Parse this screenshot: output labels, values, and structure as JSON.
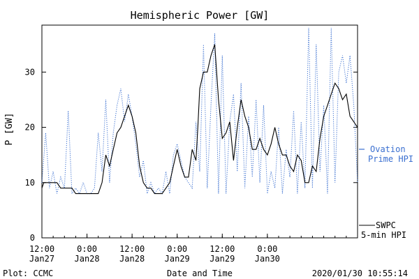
{
  "chart_data": {
    "type": "line",
    "title": "Hemispheric Power [GW]",
    "xlabel": "Date and Time",
    "ylabel": "P [GW]",
    "ylim": [
      0,
      38.5
    ],
    "xlim": [
      0,
      84
    ],
    "y_ticks": [
      0,
      10,
      20,
      30
    ],
    "x_ticks": [
      {
        "x": 0,
        "label1": "12:00",
        "label2": "Jan27"
      },
      {
        "x": 12,
        "label1": "0:00",
        "label2": "Jan28"
      },
      {
        "x": 24,
        "label1": "12:00",
        "label2": "Jan28"
      },
      {
        "x": 36,
        "label1": "0:00",
        "label2": "Jan29"
      },
      {
        "x": 48,
        "label1": "12:00",
        "label2": "Jan29"
      },
      {
        "x": 60,
        "label1": "0:00",
        "label2": "Jan30"
      }
    ],
    "grid": false,
    "footer_left": "Plot: CCMC",
    "footer_right": "2020/01/30 10:55:14",
    "series": [
      {
        "name": "SWPC 5-min HPI",
        "legend_line1": "SWPC",
        "legend_line2": "5-min HPI",
        "color": "#000000",
        "style": "solid",
        "x": [
          0,
          0.5,
          1,
          2,
          3,
          4,
          5,
          6,
          7,
          8,
          9,
          10,
          11,
          12,
          13,
          14,
          15,
          16,
          17,
          18,
          19,
          20,
          21,
          22,
          23,
          24,
          25,
          26,
          27,
          28,
          29,
          30,
          31,
          32,
          33,
          34,
          35,
          36,
          37,
          38,
          39,
          40,
          41,
          41.5,
          42,
          43,
          44,
          45,
          46,
          47,
          48,
          49,
          50,
          51,
          52,
          53,
          54,
          55,
          56,
          57,
          58,
          59,
          60,
          61,
          62,
          63,
          64,
          65,
          66,
          67,
          68,
          69,
          70,
          71,
          72,
          73,
          74,
          75,
          76,
          77,
          78,
          79,
          80,
          81,
          82,
          83,
          84
        ],
        "y": [
          9,
          10,
          10,
          10,
          10,
          10,
          9,
          9,
          9,
          9,
          8,
          8,
          8,
          8,
          8,
          8,
          8,
          10,
          15,
          13,
          16,
          19,
          20,
          22,
          24,
          22,
          19,
          13,
          10,
          9,
          9,
          8,
          8,
          8,
          9,
          10,
          13,
          16,
          13,
          11,
          11,
          16,
          14,
          20,
          27,
          30,
          30,
          33,
          35,
          25,
          18,
          19,
          21,
          14,
          20,
          25,
          22,
          20,
          16,
          16,
          18,
          16,
          15,
          17,
          20,
          17,
          15,
          15,
          13,
          12,
          15,
          14,
          10,
          10,
          13,
          12,
          18,
          22,
          24,
          26,
          28,
          27,
          25,
          26,
          22,
          21,
          20
        ]
      },
      {
        "name": "Ovation Prime HPI",
        "legend_line1": "Ovation",
        "legend_line2": "Prime HPI",
        "color": "#3a6fd0",
        "style": "dotted",
        "x": [
          0,
          1,
          2,
          3,
          4,
          5,
          6,
          7,
          8,
          9,
          10,
          11,
          12,
          13,
          14,
          15,
          16,
          17,
          18,
          19,
          20,
          21,
          22,
          23,
          24,
          25,
          26,
          27,
          28,
          29,
          30,
          31,
          32,
          33,
          34,
          35,
          36,
          37,
          38,
          39,
          40,
          41,
          42,
          43,
          44,
          45,
          46,
          47,
          48,
          49,
          50,
          51,
          52,
          53,
          54,
          55,
          56,
          57,
          58,
          59,
          60,
          61,
          62,
          63,
          64,
          65,
          66,
          67,
          68,
          69,
          70,
          71,
          72,
          73,
          74,
          75,
          76,
          77,
          78,
          79,
          80,
          81,
          82,
          83,
          84
        ],
        "y": [
          10,
          19,
          9,
          12,
          8,
          11,
          9,
          23,
          8,
          9,
          8,
          10,
          8,
          8,
          9,
          19,
          12,
          25,
          10,
          19,
          24,
          27,
          21,
          26,
          22,
          17,
          11,
          14,
          8,
          10,
          8,
          9,
          8,
          12,
          8,
          15,
          17,
          14,
          11,
          10,
          9,
          21,
          12,
          35,
          9,
          24,
          37,
          8,
          33,
          8,
          21,
          26,
          12,
          28,
          9,
          22,
          11,
          25,
          10,
          24,
          8,
          12,
          9,
          20,
          8,
          16,
          11,
          23,
          8,
          21,
          9,
          38,
          9,
          35,
          12,
          24,
          8,
          38,
          10,
          30,
          33,
          28,
          33,
          24,
          10
        ]
      }
    ]
  }
}
